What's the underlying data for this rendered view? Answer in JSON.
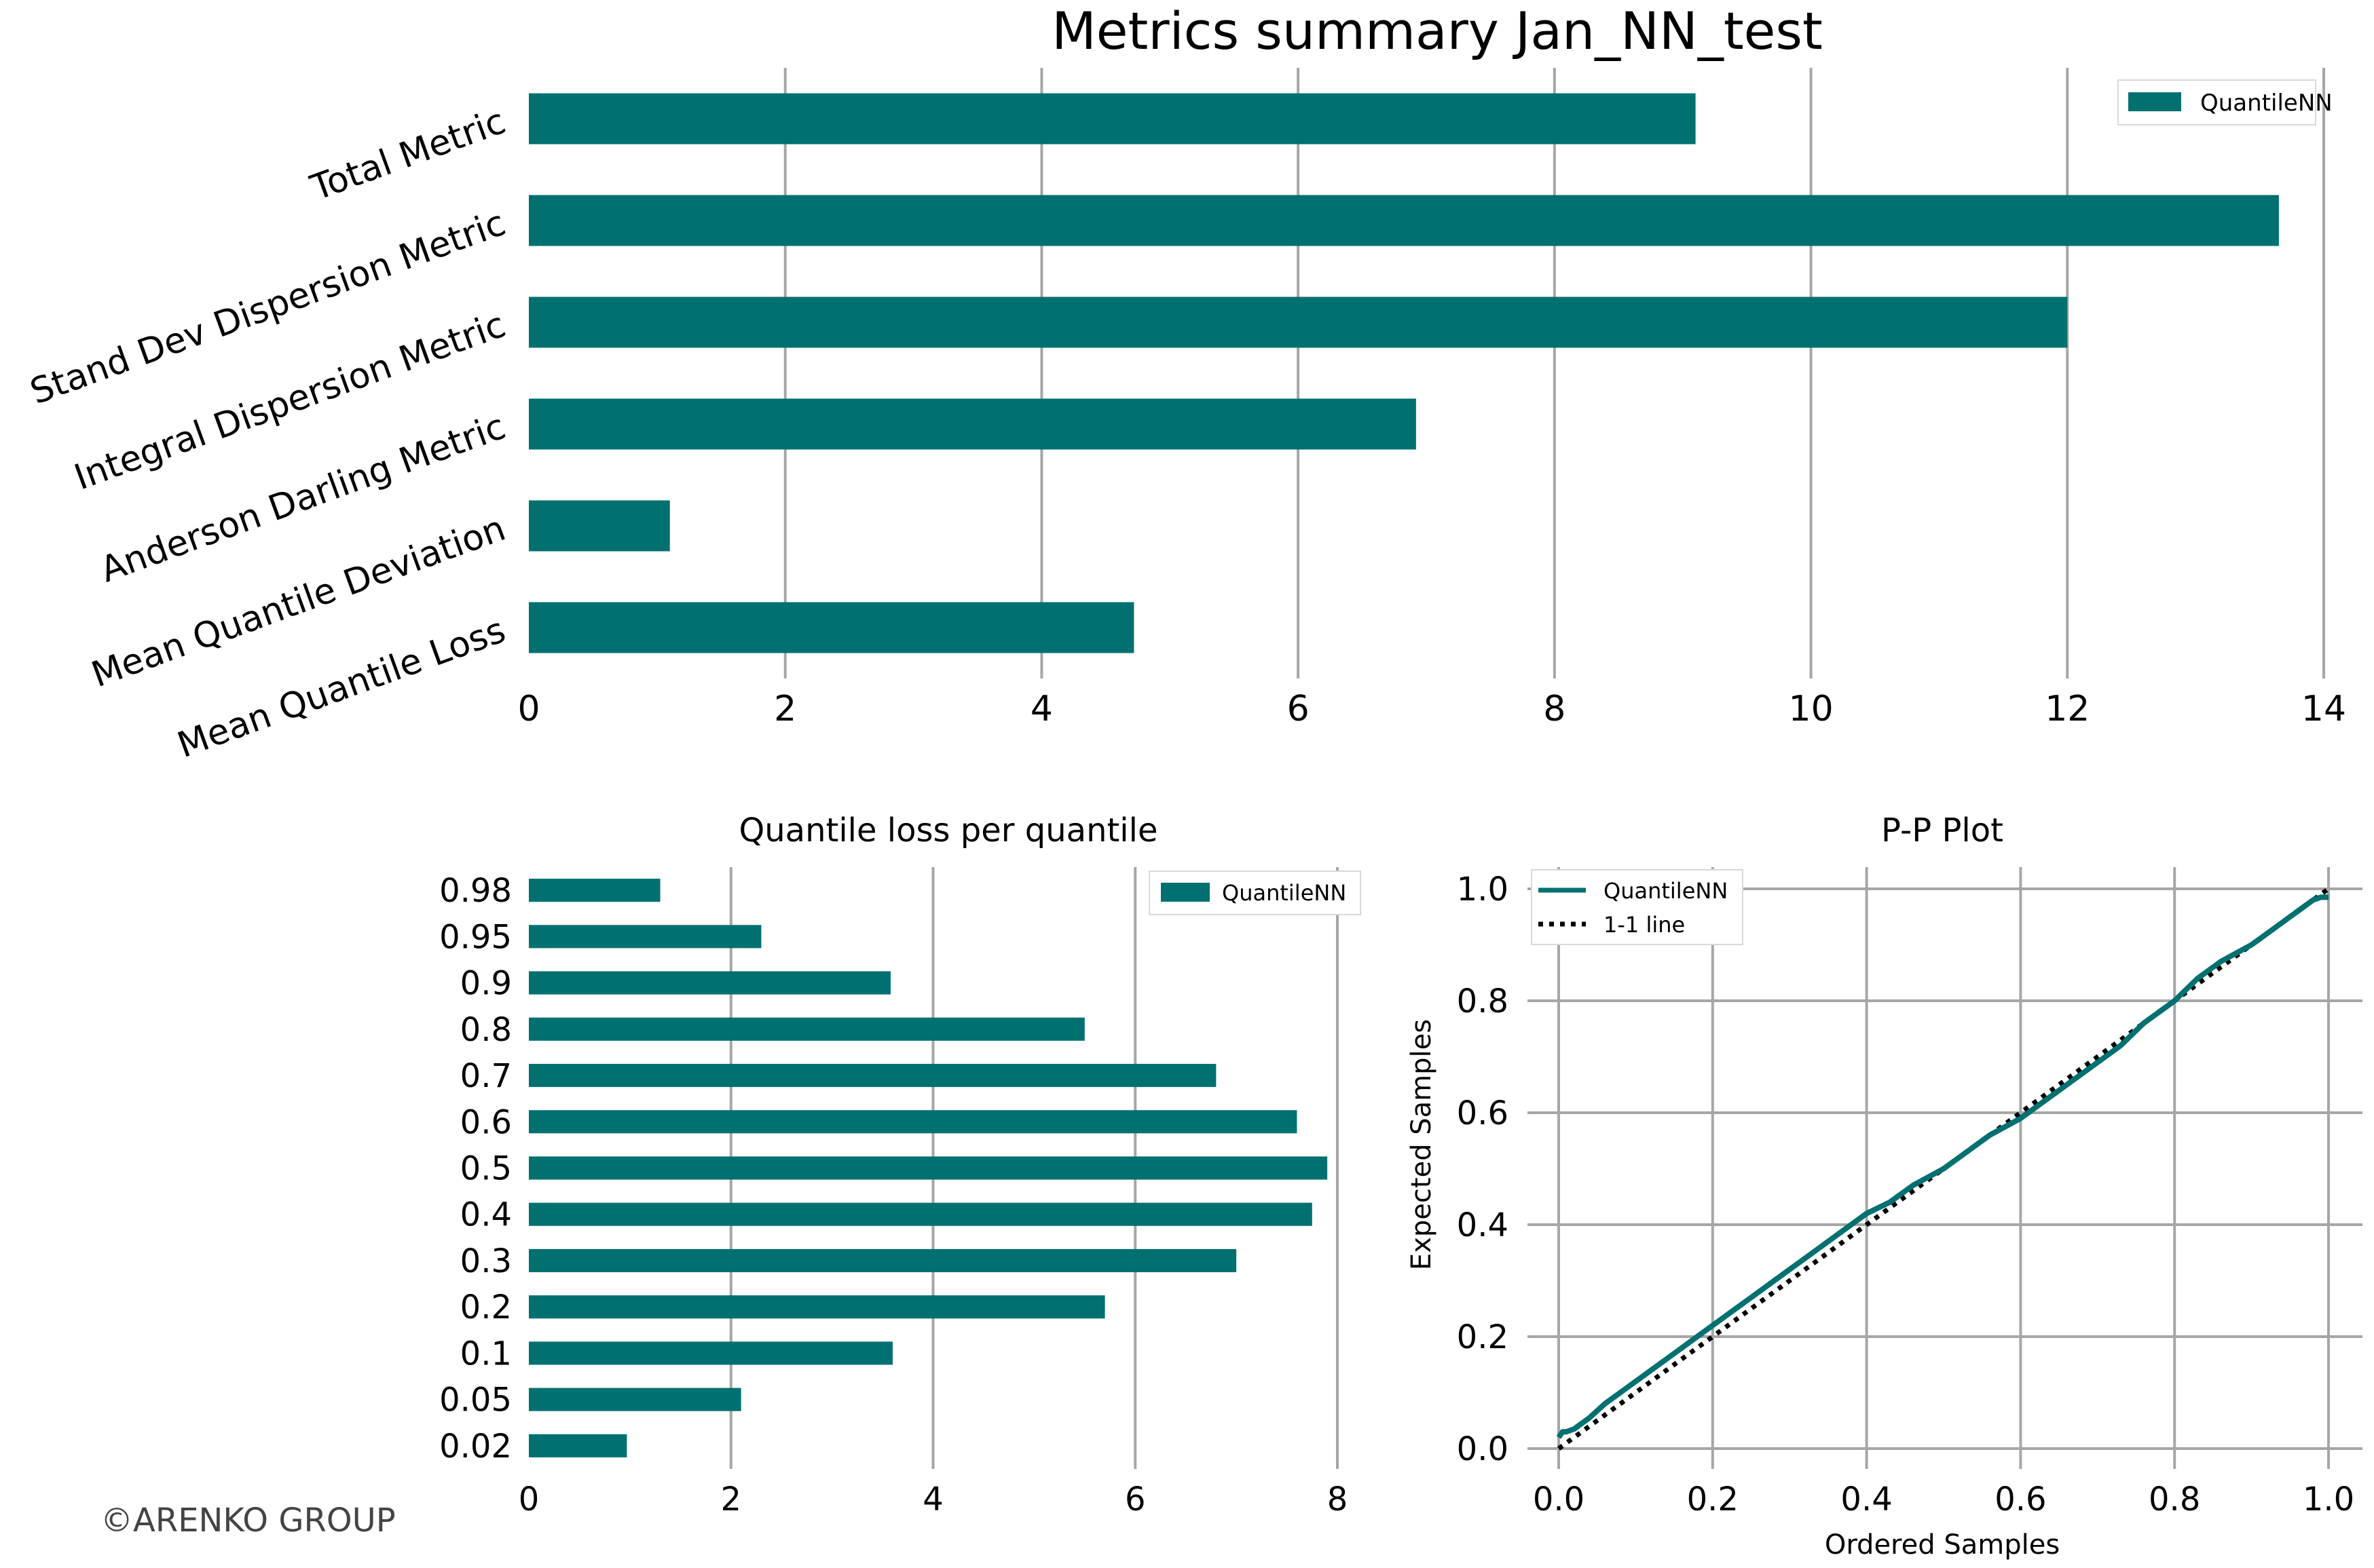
{
  "colors": {
    "bar": "#007070",
    "grid": "#a6a6a6",
    "text": "#000000",
    "one_to_one": "#000000"
  },
  "copyright": "©ARENKO GROUP",
  "chart_data": [
    {
      "type": "bar",
      "orientation": "horizontal",
      "title": "Metrics summary Jan_NN_test",
      "categories": [
        "Total Metric",
        "Stand Dev Dispersion Metric",
        "Integral Dispersion Metric",
        "Anderson Darling Metric",
        "Mean Quantile Deviation",
        "Mean Quantile Loss"
      ],
      "series": [
        {
          "name": "QuantileNN",
          "values": [
            9.1,
            13.65,
            12.0,
            6.92,
            1.1,
            4.72
          ]
        }
      ],
      "xlim": [
        0,
        14
      ],
      "xticks": [
        "0",
        "2",
        "4",
        "6",
        "8",
        "10",
        "12",
        "14"
      ],
      "grid": "vertical",
      "legend": "top-right"
    },
    {
      "type": "bar",
      "orientation": "horizontal",
      "title": "Quantile loss per quantile",
      "categories": [
        "0.98",
        "0.95",
        "0.9",
        "0.8",
        "0.7",
        "0.6",
        "0.5",
        "0.4",
        "0.3",
        "0.2",
        "0.1",
        "0.05",
        "0.02"
      ],
      "series": [
        {
          "name": "QuantileNN",
          "values": [
            1.3,
            2.3,
            3.58,
            5.5,
            6.8,
            7.6,
            7.9,
            7.75,
            7.0,
            5.7,
            3.6,
            2.1,
            0.97
          ]
        }
      ],
      "xlim": [
        0,
        8
      ],
      "xticks": [
        "0",
        "2",
        "4",
        "6",
        "8"
      ],
      "grid": "vertical",
      "legend": "top-right"
    },
    {
      "type": "line",
      "title": "P-P Plot",
      "xlabel": "Ordered Samples",
      "ylabel": "Expected Samples",
      "xlim": [
        0,
        1
      ],
      "ylim": [
        0,
        1
      ],
      "xticks": [
        "0.0",
        "0.2",
        "0.4",
        "0.6",
        "0.8",
        "1.0"
      ],
      "yticks": [
        "0.0",
        "0.2",
        "0.4",
        "0.6",
        "0.8",
        "1.0"
      ],
      "grid": "both",
      "legend": "top-left",
      "series": [
        {
          "name": "QuantileNN",
          "x": [
            0,
            0.005,
            0.01,
            0.02,
            0.04,
            0.06,
            0.08,
            0.1,
            0.12,
            0.15,
            0.18,
            0.2,
            0.22,
            0.25,
            0.28,
            0.3,
            0.33,
            0.36,
            0.4,
            0.43,
            0.46,
            0.5,
            0.53,
            0.56,
            0.6,
            0.63,
            0.66,
            0.7,
            0.73,
            0.76,
            0.8,
            0.83,
            0.86,
            0.9,
            0.93,
            0.96,
            0.98,
            0.99,
            1.0
          ],
          "y": [
            0.02,
            0.03,
            0.03,
            0.035,
            0.055,
            0.08,
            0.1,
            0.12,
            0.14,
            0.17,
            0.2,
            0.22,
            0.24,
            0.27,
            0.3,
            0.32,
            0.35,
            0.38,
            0.42,
            0.44,
            0.47,
            0.5,
            0.53,
            0.56,
            0.59,
            0.62,
            0.65,
            0.69,
            0.72,
            0.76,
            0.8,
            0.84,
            0.87,
            0.9,
            0.93,
            0.96,
            0.98,
            0.985,
            0.985
          ]
        },
        {
          "name": "1-1 line",
          "x": [
            0,
            1
          ],
          "y": [
            0,
            1
          ]
        }
      ]
    }
  ]
}
